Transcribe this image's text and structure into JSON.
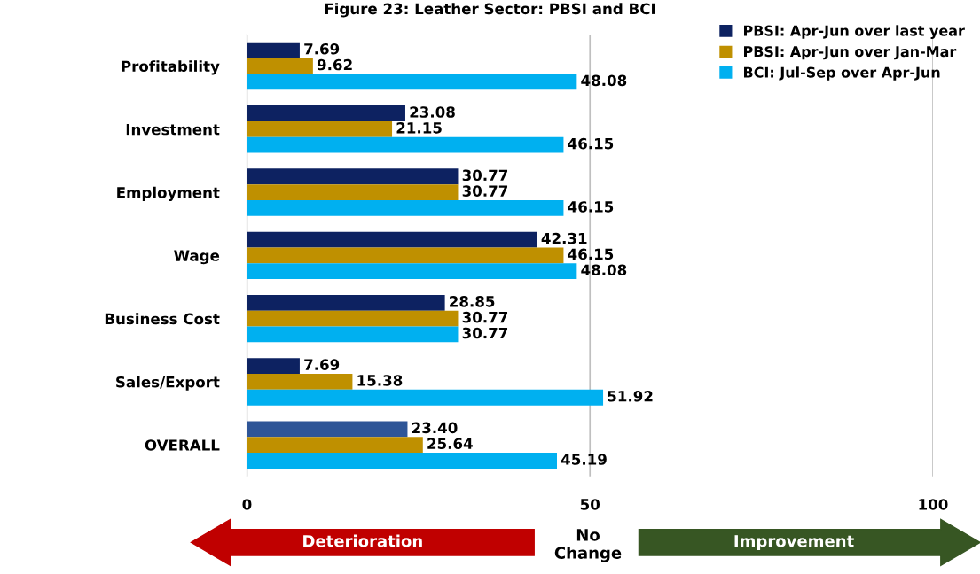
{
  "chart_data": {
    "type": "bar",
    "orientation": "horizontal",
    "title": "Figure 23: Leather Sector: PBSI and BCI",
    "categories": [
      "Profitability",
      "Investment",
      "Employment",
      "Wage",
      "Business Cost",
      "Sales/Export",
      "OVERALL"
    ],
    "series": [
      {
        "name": "PBSI: Apr-Jun over last year",
        "color": "#0d2261",
        "colors": [
          "#0d2261",
          "#0d2261",
          "#0d2261",
          "#0d2261",
          "#0d2261",
          "#0d2261",
          "#2e5597"
        ],
        "values": [
          7.69,
          23.08,
          30.77,
          42.31,
          28.85,
          7.69,
          23.4
        ],
        "value_labels": [
          "7.69",
          "23.08",
          "30.77",
          "42.31",
          "28.85",
          "7.69",
          "23.40"
        ]
      },
      {
        "name": "PBSI: Apr-Jun over Jan-Mar",
        "color": "#bf9000",
        "values": [
          9.62,
          21.15,
          30.77,
          46.15,
          30.77,
          15.38,
          25.64
        ],
        "value_labels": [
          "9.62",
          "21.15",
          "30.77",
          "46.15",
          "30.77",
          "15.38",
          "25.64"
        ]
      },
      {
        "name": "BCI: Jul-Sep over Apr-Jun",
        "color": "#00b0f0",
        "values": [
          48.08,
          46.15,
          46.15,
          48.08,
          30.77,
          51.92,
          45.19
        ],
        "value_labels": [
          "48.08",
          "46.15",
          "46.15",
          "48.08",
          "30.77",
          "51.92",
          "45.19"
        ]
      }
    ],
    "xlim": [
      0,
      100
    ],
    "xticks": [
      0,
      50,
      100
    ],
    "grid": "x",
    "legend": "top right",
    "annotations": [
      "Deterioration",
      "No Change",
      "Improvement"
    ]
  }
}
